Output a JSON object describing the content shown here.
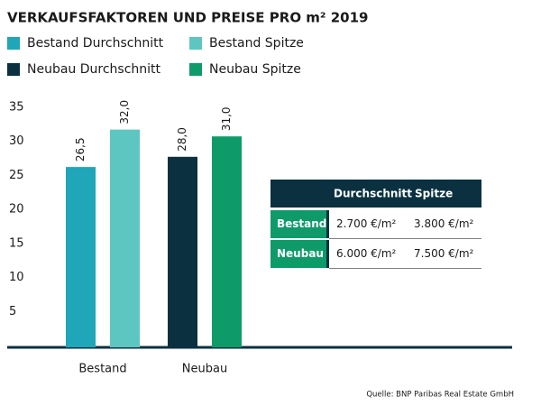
{
  "chart_data": {
    "type": "bar",
    "title": "VERKAUFSFAKTOREN UND PREISE PRO m² 2019",
    "categories": [
      "Bestand",
      "Neubau"
    ],
    "series": [
      {
        "name": "Bestand Durchschnitt",
        "color": "#1fa6b8",
        "values": [
          26.5,
          null
        ],
        "value_labels": [
          "26,5",
          null
        ]
      },
      {
        "name": "Bestand Spitze",
        "color": "#5ec6c0",
        "values": [
          32,
          null
        ],
        "value_labels": [
          "32,0",
          null
        ]
      },
      {
        "name": "Neubau Durchschnitt",
        "color": "#0b3140",
        "values": [
          null,
          28
        ],
        "value_labels": [
          null,
          "28,0"
        ]
      },
      {
        "name": "Neubau Spitze",
        "color": "#0f9a6a",
        "values": [
          null,
          31
        ],
        "value_labels": [
          null,
          "31,0"
        ]
      }
    ],
    "ylim": [
      0,
      35
    ],
    "yticks": [
      5,
      10,
      15,
      20,
      25,
      30,
      35
    ],
    "grid": false
  },
  "table": {
    "columns": [
      "Durchschnitt",
      "Spitze"
    ],
    "rows": [
      [
        "Bestand",
        "2.700 €/m²",
        "3.800 €/m²"
      ],
      [
        "Neubau",
        "6.000 €/m²",
        "7.500 €/m²"
      ]
    ]
  },
  "source": "Quelle: BNP Paribas Real Estate GmbH"
}
